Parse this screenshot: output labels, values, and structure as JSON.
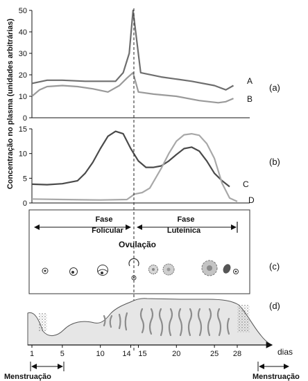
{
  "figure": {
    "y_axis_label": "Concentração no plasma (unidades arbitrárias)",
    "panel_labels": [
      "(a)",
      "(b)",
      "(c)",
      "(d)"
    ],
    "curve_labels": [
      "A",
      "B",
      "C",
      "D"
    ],
    "phases": {
      "follicular": [
        "Fase",
        "Folicular"
      ],
      "luteal": [
        "Fase",
        "Luteínica"
      ]
    },
    "ovulation_label": "Ovulação",
    "day_unit": "dias",
    "menstruation_label": "Menstruação",
    "day_ticks": [
      "1",
      "5",
      "10",
      "14",
      "15",
      "20",
      "25",
      "28"
    ]
  },
  "chart_data": [
    {
      "type": "line",
      "panel": "(a)",
      "yticks": [
        0,
        10,
        20,
        30,
        40,
        50
      ],
      "ylim": [
        0,
        50
      ],
      "xlim": [
        1,
        28
      ],
      "colors": {
        "A": "#6e6e6e",
        "B": "#9a9a9a"
      },
      "series": [
        {
          "name": "A",
          "x": [
            1,
            3,
            5,
            8,
            10,
            12,
            13,
            13.8,
            14.3,
            15.3,
            18,
            22,
            25,
            26.5,
            27.5
          ],
          "y": [
            16,
            17.5,
            17.5,
            17,
            17,
            17,
            21,
            30,
            50,
            21,
            19,
            17,
            15,
            13,
            15
          ]
        },
        {
          "name": "B",
          "x": [
            1,
            2,
            3,
            5,
            7,
            9,
            11,
            12.5,
            13.5,
            14.3,
            15,
            17,
            20,
            23,
            25.5,
            26.5,
            27.5
          ],
          "y": [
            10,
            13,
            14.5,
            15,
            14.5,
            13.5,
            12,
            15,
            18.5,
            21,
            12,
            11,
            10,
            8,
            7,
            7.5,
            9
          ]
        }
      ]
    },
    {
      "type": "line",
      "panel": "(b)",
      "yticks": [
        0,
        5,
        10,
        15
      ],
      "ylim": [
        0,
        15
      ],
      "xlim": [
        1,
        28
      ],
      "colors": {
        "C": "#4a4a4a",
        "D": "#a8a8a8"
      },
      "series": [
        {
          "name": "C",
          "x": [
            1,
            3,
            5,
            7,
            8,
            9,
            10,
            11,
            12,
            13,
            14,
            15,
            16,
            17,
            18,
            19,
            20,
            21,
            22,
            23,
            24,
            25,
            26,
            27
          ],
          "y": [
            3.8,
            3.7,
            3.9,
            4.5,
            6,
            8.2,
            11,
            13.5,
            14.5,
            14,
            11,
            8.5,
            7.2,
            7.2,
            7.5,
            8.5,
            9.8,
            11,
            11.3,
            10.5,
            8.5,
            6,
            4.5,
            3.3
          ]
        },
        {
          "name": "D",
          "x": [
            1,
            5,
            10,
            13.5,
            14.5,
            15.5,
            16.5,
            18,
            19,
            20,
            21,
            22,
            23,
            24,
            25,
            26,
            27,
            28
          ],
          "y": [
            0.8,
            0.7,
            0.6,
            0.7,
            1.8,
            2.1,
            3,
            7,
            10,
            12.5,
            13.8,
            14,
            13.7,
            12,
            9,
            4,
            1,
            0.3
          ]
        }
      ]
    }
  ]
}
